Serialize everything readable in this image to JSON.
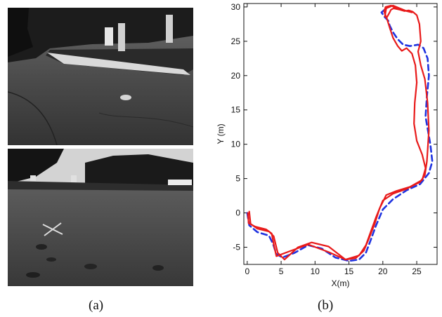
{
  "panels": {
    "a": {
      "caption": "(a)"
    },
    "b": {
      "caption": "(b)"
    }
  },
  "chart_data": {
    "type": "line",
    "xlabel": "X(m)",
    "ylabel": "Y (m)",
    "xlim": [
      -0.5,
      28
    ],
    "ylim": [
      -7.5,
      30.5
    ],
    "xticks": [
      0,
      5,
      10,
      15,
      20,
      25
    ],
    "yticks": [
      -5,
      0,
      5,
      10,
      15,
      20,
      25,
      30
    ],
    "grid": false,
    "series": [
      {
        "style": "dashed",
        "color": "#1f33e0",
        "x": [
          0,
          0.3,
          1.5,
          3.2,
          3.8,
          4.3,
          5.2,
          7,
          9,
          11,
          13,
          15,
          16.5,
          17.5,
          18.2,
          19,
          20,
          21.5,
          23.5,
          25.5,
          26.8,
          27.3,
          27,
          26.3,
          26.5,
          26.8,
          26.6,
          26,
          25.2,
          24,
          23,
          22.2,
          21.5,
          21,
          20.8,
          20.3,
          19.8,
          20.5
        ],
        "y": [
          0,
          -1.8,
          -2.8,
          -3.3,
          -4.5,
          -6,
          -6.5,
          -5.8,
          -4.7,
          -5.2,
          -6.5,
          -7,
          -6.8,
          -5.8,
          -4,
          -1.8,
          0.5,
          2,
          3.3,
          4.2,
          5.8,
          7.5,
          10,
          14,
          17,
          20,
          22.5,
          24,
          24.5,
          24.3,
          24.5,
          25.3,
          26.3,
          27.3,
          28,
          28.5,
          29.2,
          29.8
        ]
      },
      {
        "style": "solid",
        "color": "#e81a1a",
        "x": [
          0.1,
          0.2,
          1.2,
          2.8,
          3.6,
          4.0,
          4.3,
          6.5,
          9,
          12,
          14.5,
          16.5,
          17.5,
          18.2,
          19,
          20,
          21.5,
          23.5,
          25.5,
          26.2,
          26.5,
          26.8,
          26.6,
          26.2,
          25.6,
          25.2,
          25.6,
          25.4,
          25,
          24.4,
          23.8,
          23.2,
          22.5,
          21.6,
          21.2,
          21,
          20.6,
          20.3,
          20.5,
          21.5,
          22.5,
          23.5,
          24.3
        ],
        "y": [
          0,
          -1.5,
          -2.0,
          -2.4,
          -3.0,
          -5,
          -6.3,
          -5.5,
          -4.6,
          -5.7,
          -6.8,
          -6.2,
          -4.7,
          -2.8,
          -0.6,
          1.8,
          2.8,
          3.5,
          4.5,
          5.5,
          7.5,
          12,
          16,
          19.5,
          21.5,
          23.5,
          25,
          27.5,
          28.8,
          29.3,
          29.5,
          29.4,
          29.6,
          29.8,
          29.6,
          29.2,
          28.5,
          28.6,
          29.8,
          30.2,
          29.8,
          29.4,
          29.2
        ]
      },
      {
        "style": "solid",
        "color": "#e81a1a",
        "x": [
          0.3,
          0.5,
          1.5,
          3.2,
          3.9,
          4.5,
          5.5,
          7.5,
          9.5,
          12,
          14.5,
          16,
          17.2,
          18,
          18.8,
          19.5,
          20.5,
          22,
          24,
          25.8,
          26.3,
          25.8,
          25,
          24.6,
          24.7,
          25,
          24.8,
          24.3,
          23.5,
          22.8,
          22.2,
          21.5,
          21.0,
          20.6,
          20.3,
          20.2,
          20.4,
          21.2,
          22.2
        ],
        "y": [
          0.2,
          -1.6,
          -2.3,
          -2.7,
          -3.4,
          -5.8,
          -6.8,
          -5.0,
          -4.3,
          -4.9,
          -6.8,
          -6.6,
          -5.5,
          -3.6,
          -1.6,
          0.6,
          2.6,
          3.2,
          3.8,
          4.8,
          6.5,
          8.5,
          10.5,
          13,
          16,
          19,
          21.5,
          23.2,
          24.0,
          23.6,
          24.3,
          25.5,
          27,
          28.3,
          29,
          29.4,
          30.0,
          30.2,
          29.7
        ]
      }
    ]
  }
}
